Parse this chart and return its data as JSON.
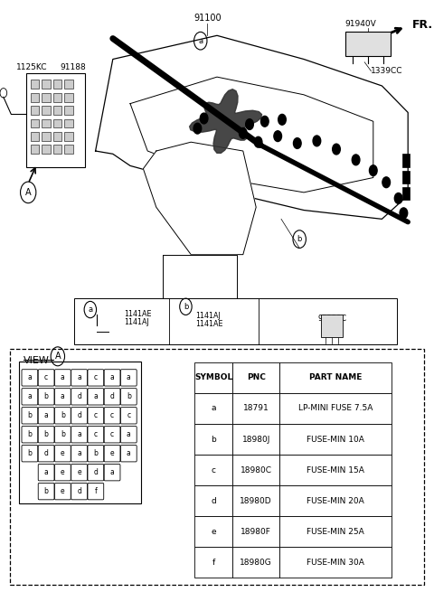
{
  "bg_color": "#ffffff",
  "table_data": {
    "headers": [
      "SYMBOL",
      "PNC",
      "PART NAME"
    ],
    "rows": [
      [
        "a",
        "18791",
        "LP-MINI FUSE 7.5A"
      ],
      [
        "b",
        "18980J",
        "FUSE-MIN 10A"
      ],
      [
        "c",
        "18980C",
        "FUSE-MIN 15A"
      ],
      [
        "d",
        "18980D",
        "FUSE-MIN 20A"
      ],
      [
        "e",
        "18980F",
        "FUSE-MIN 25A"
      ],
      [
        "f",
        "18980G",
        "FUSE-MIN 30A"
      ]
    ]
  },
  "fuse_grid": {
    "row1": [
      "a",
      "c",
      "a",
      "a",
      "c",
      "a",
      "a"
    ],
    "row2": [
      "a",
      "b",
      "a",
      "d",
      "a",
      "d",
      "b"
    ],
    "row3": [
      "b",
      "a",
      "b",
      "d",
      "c",
      "c",
      "c"
    ],
    "row4": [
      "b",
      "b",
      "b",
      "a",
      "c",
      "c",
      "a"
    ],
    "row5": [
      "b",
      "d",
      "e",
      "a",
      "b",
      "e",
      "a"
    ],
    "row6": [
      "a",
      "e",
      "e",
      "d",
      "a"
    ],
    "row7": [
      "b",
      "e",
      "d",
      "f"
    ]
  }
}
